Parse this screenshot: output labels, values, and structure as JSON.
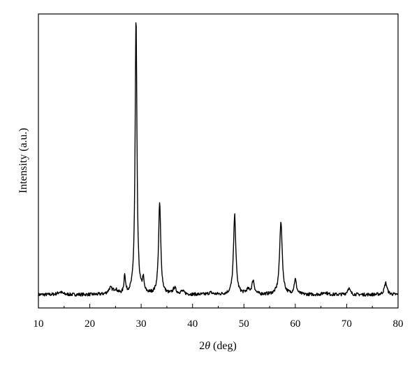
{
  "chart_data": {
    "type": "line",
    "title": "",
    "xlabel_prefix": "2",
    "xlabel_symbol": "θ",
    "xlabel_suffix": " (deg)",
    "ylabel": "Intensity (a.u.)",
    "xlim": [
      10,
      80
    ],
    "ylim": [
      0,
      100
    ],
    "xticks": [
      10,
      20,
      30,
      40,
      50,
      60,
      70,
      80
    ],
    "x_tick_labels": [
      "10",
      "20",
      "30",
      "40",
      "50",
      "60",
      "70",
      "80"
    ],
    "y_tick_labels_shown": false,
    "grid": false,
    "legend": "none",
    "line_color": "#000000",
    "series": [
      {
        "baseline": 4.5,
        "peaks": [
          {
            "x": 14.2,
            "height": 0.9,
            "width": 0.6
          },
          {
            "x": 24.0,
            "height": 2.0,
            "width": 0.5
          },
          {
            "x": 25.0,
            "height": 1.4,
            "width": 0.5
          },
          {
            "x": 26.8,
            "height": 6.5,
            "width": 0.18
          },
          {
            "x": 29.0,
            "height": 94.0,
            "width": 0.23
          },
          {
            "x": 30.4,
            "height": 4.5,
            "width": 0.2
          },
          {
            "x": 33.6,
            "height": 31.0,
            "width": 0.28
          },
          {
            "x": 36.5,
            "height": 2.1,
            "width": 0.4
          },
          {
            "x": 38.0,
            "height": 1.0,
            "width": 0.5
          },
          {
            "x": 43.5,
            "height": 0.6,
            "width": 0.5
          },
          {
            "x": 48.2,
            "height": 27.0,
            "width": 0.3
          },
          {
            "x": 50.8,
            "height": 1.4,
            "width": 0.5
          },
          {
            "x": 51.8,
            "height": 4.6,
            "width": 0.3
          },
          {
            "x": 57.2,
            "height": 25.0,
            "width": 0.33
          },
          {
            "x": 60.0,
            "height": 5.0,
            "width": 0.3
          },
          {
            "x": 65.8,
            "height": 0.8,
            "width": 0.5
          },
          {
            "x": 70.4,
            "height": 2.2,
            "width": 0.35
          },
          {
            "x": 77.6,
            "height": 4.0,
            "width": 0.35
          }
        ],
        "noise": 0.55,
        "step": 0.07
      }
    ]
  }
}
